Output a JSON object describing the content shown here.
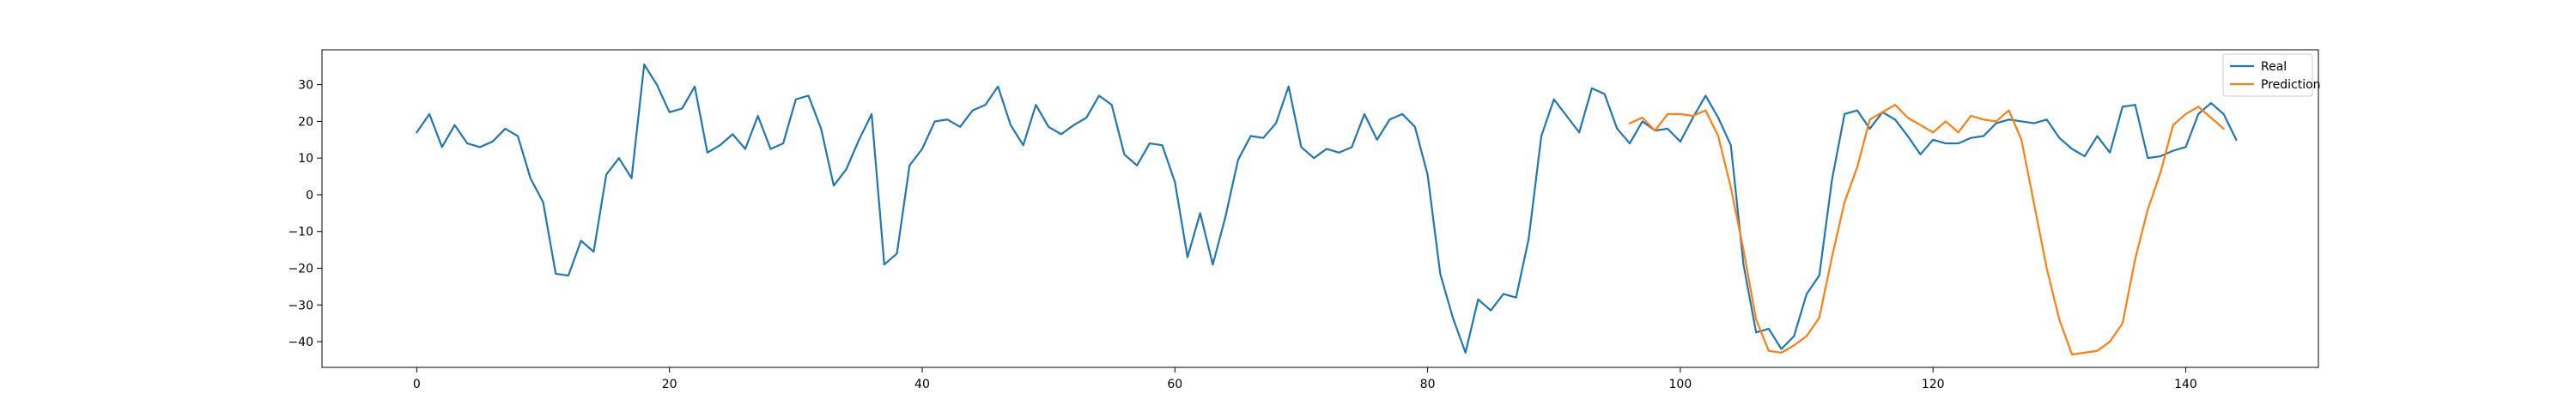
{
  "chart_data": {
    "type": "line",
    "title": "",
    "xlabel": "",
    "ylabel": "",
    "xlim": [
      -7.5,
      150.5
    ],
    "ylim": [
      -47,
      39.5
    ],
    "xticks": [
      0,
      20,
      40,
      60,
      80,
      100,
      120,
      140
    ],
    "yticks": [
      -40,
      -30,
      -20,
      -10,
      0,
      10,
      20,
      30
    ],
    "grid": false,
    "legend_position": "top-right",
    "series": [
      {
        "name": "Real",
        "color": "#1f77b4",
        "x_start": 0,
        "values": [
          17,
          22,
          13,
          19,
          14,
          13,
          14.5,
          18,
          16,
          4.5,
          -2,
          -21.5,
          -22,
          -12.5,
          -15.5,
          5.5,
          10,
          4.5,
          35.5,
          30,
          22.5,
          23.5,
          29.5,
          11.5,
          13.5,
          16.5,
          12.5,
          21.5,
          12.5,
          14,
          26,
          27,
          18,
          2.5,
          7,
          15,
          22,
          -19,
          -16,
          8,
          12.5,
          20,
          20.5,
          18.5,
          23,
          24.5,
          29.5,
          19,
          13.5,
          24.5,
          18.5,
          16.5,
          19,
          21,
          27,
          24.5,
          11,
          8,
          14,
          13.5,
          3.5,
          -17,
          -5,
          -19,
          -6,
          9.5,
          16,
          15.5,
          19.5,
          29.5,
          13,
          10,
          12.5,
          11.5,
          13,
          22,
          15,
          20.5,
          22,
          18.5,
          5.5,
          -21.5,
          -33.5,
          -43,
          -28.5,
          -31.5,
          -27,
          -28,
          -12,
          16,
          26,
          21.5,
          17,
          29,
          27.5,
          18,
          14,
          20,
          17.5,
          18,
          14.5,
          21,
          27,
          21,
          13.5,
          -19,
          -37.5,
          -36.5,
          -42,
          -38.5,
          -27,
          -22,
          4,
          22,
          23,
          18,
          22.5,
          20.5,
          16,
          11,
          15,
          14,
          14,
          15.5,
          16,
          19.5,
          20.5,
          20,
          19.5,
          20.5,
          15.5,
          12.5,
          10.5,
          16,
          11.5,
          24,
          24.5,
          10,
          10.5,
          12,
          13,
          22,
          25,
          22,
          15
        ]
      },
      {
        "name": "Prediction",
        "color": "#ff7f0e",
        "x_start": 96,
        "values": [
          19.5,
          21,
          17.5,
          22,
          22,
          21.5,
          23,
          16,
          2,
          -15,
          -34,
          -42.5,
          -43,
          -41,
          -38.5,
          -33.5,
          -17,
          -2,
          7.5,
          20.5,
          22.5,
          24.5,
          21,
          19,
          17,
          20,
          17,
          21.5,
          20.5,
          20,
          23,
          15,
          -2.5,
          -20,
          -34,
          -43.5,
          -43,
          -42.5,
          -40,
          -35,
          -17.5,
          -4,
          6,
          19,
          22,
          24,
          21,
          18
        ]
      }
    ]
  }
}
